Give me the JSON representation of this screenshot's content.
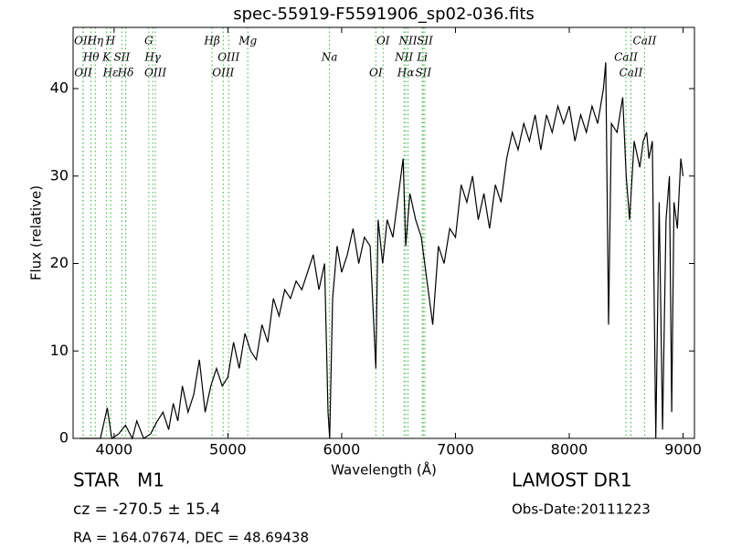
{
  "chart_data": {
    "type": "line",
    "title": "spec-55919-F5591906_sp02-036.fits",
    "x_label": "Wavelength (Å)",
    "y_label": "Flux (relative)",
    "xlim": [
      3640,
      9100
    ],
    "ylim": [
      0,
      47
    ],
    "xticks": [
      4000,
      5000,
      6000,
      7000,
      8000,
      9000
    ],
    "yticks": [
      0,
      10,
      20,
      30,
      40
    ],
    "color": "#000000",
    "line_color": "#3cb043",
    "x": [
      3700,
      3760,
      3820,
      3880,
      3940,
      3980,
      4040,
      4100,
      4160,
      4200,
      4260,
      4320,
      4380,
      4430,
      4480,
      4520,
      4560,
      4600,
      4650,
      4700,
      4750,
      4800,
      4850,
      4900,
      4950,
      5000,
      5050,
      5100,
      5150,
      5200,
      5250,
      5300,
      5350,
      5400,
      5450,
      5500,
      5550,
      5600,
      5650,
      5700,
      5750,
      5800,
      5850,
      5880,
      5895,
      5920,
      5960,
      6000,
      6050,
      6100,
      6150,
      6200,
      6250,
      6300,
      6320,
      6360,
      6400,
      6450,
      6500,
      6540,
      6563,
      6600,
      6650,
      6700,
      6750,
      6800,
      6850,
      6900,
      6950,
      7000,
      7050,
      7100,
      7150,
      7200,
      7250,
      7300,
      7350,
      7400,
      7450,
      7500,
      7550,
      7600,
      7650,
      7700,
      7750,
      7800,
      7850,
      7900,
      7950,
      8000,
      8050,
      8100,
      8150,
      8200,
      8250,
      8300,
      8320,
      8345,
      8370,
      8420,
      8470,
      8500,
      8530,
      8570,
      8620,
      8650,
      8680,
      8700,
      8730,
      8760,
      8790,
      8820,
      8850,
      8880,
      8900,
      8920,
      8950,
      8980,
      9000
    ],
    "values": [
      0,
      0,
      0,
      0,
      3.5,
      0,
      0.5,
      1.5,
      0,
      2,
      0,
      0.5,
      2,
      3,
      1,
      4,
      2,
      6,
      3,
      5,
      9,
      3,
      6,
      8,
      6,
      7,
      11,
      8,
      12,
      10,
      9,
      13,
      11,
      16,
      14,
      17,
      16,
      18,
      17,
      19,
      21,
      17,
      20,
      3,
      0,
      16,
      22,
      19,
      21,
      24,
      20,
      23,
      22,
      8,
      25,
      20,
      25,
      23,
      28,
      32,
      22,
      28,
      25,
      23,
      18,
      13,
      22,
      20,
      24,
      23,
      29,
      27,
      30,
      25,
      28,
      24,
      29,
      27,
      32,
      35,
      33,
      36,
      34,
      37,
      33,
      37,
      35,
      38,
      36,
      38,
      34,
      37,
      35,
      38,
      36,
      40,
      43,
      13,
      36,
      35,
      39,
      30,
      25,
      34,
      31,
      34,
      35,
      32,
      34,
      0,
      27,
      1,
      25,
      30,
      3,
      27,
      24,
      32,
      30
    ],
    "spectral_lines": [
      {
        "label": "OII",
        "wavelength": 3727
      },
      {
        "label": "Hθ",
        "wavelength": 3798
      },
      {
        "label": "OII",
        "wavelength": 3729
      },
      {
        "label": "Hη",
        "wavelength": 3835
      },
      {
        "label": "K",
        "wavelength": 3934
      },
      {
        "label": "Hε",
        "wavelength": 3970
      },
      {
        "label": "H",
        "wavelength": 3969
      },
      {
        "label": "SII",
        "wavelength": 4069
      },
      {
        "label": "Hδ",
        "wavelength": 4102
      },
      {
        "label": "G",
        "wavelength": 4305
      },
      {
        "label": "Hγ",
        "wavelength": 4340
      },
      {
        "label": "OIII",
        "wavelength": 4363
      },
      {
        "label": "Hβ",
        "wavelength": 4861
      },
      {
        "label": "OIII",
        "wavelength": 5007
      },
      {
        "label": "OIII",
        "wavelength": 4959
      },
      {
        "label": "Mg",
        "wavelength": 5175
      },
      {
        "label": "Na",
        "wavelength": 5893
      },
      {
        "label": "OI",
        "wavelength": 6300
      },
      {
        "label": "OI",
        "wavelength": 6364
      },
      {
        "label": "NII",
        "wavelength": 6548
      },
      {
        "label": "Hα",
        "wavelength": 6563
      },
      {
        "label": "NII",
        "wavelength": 6583
      },
      {
        "label": "Li",
        "wavelength": 6708
      },
      {
        "label": "SII",
        "wavelength": 6717
      },
      {
        "label": "SII",
        "wavelength": 6731
      },
      {
        "label": "CaII",
        "wavelength": 8498
      },
      {
        "label": "CaII",
        "wavelength": 8542
      },
      {
        "label": "CaII",
        "wavelength": 8662
      }
    ],
    "annotations": [
      "STAR   M1",
      "cz = -270.5 ± 15.4",
      "RA = 164.07674, DEC = 48.69438",
      "LAMOST DR1",
      "Obs-Date:20111223"
    ]
  }
}
